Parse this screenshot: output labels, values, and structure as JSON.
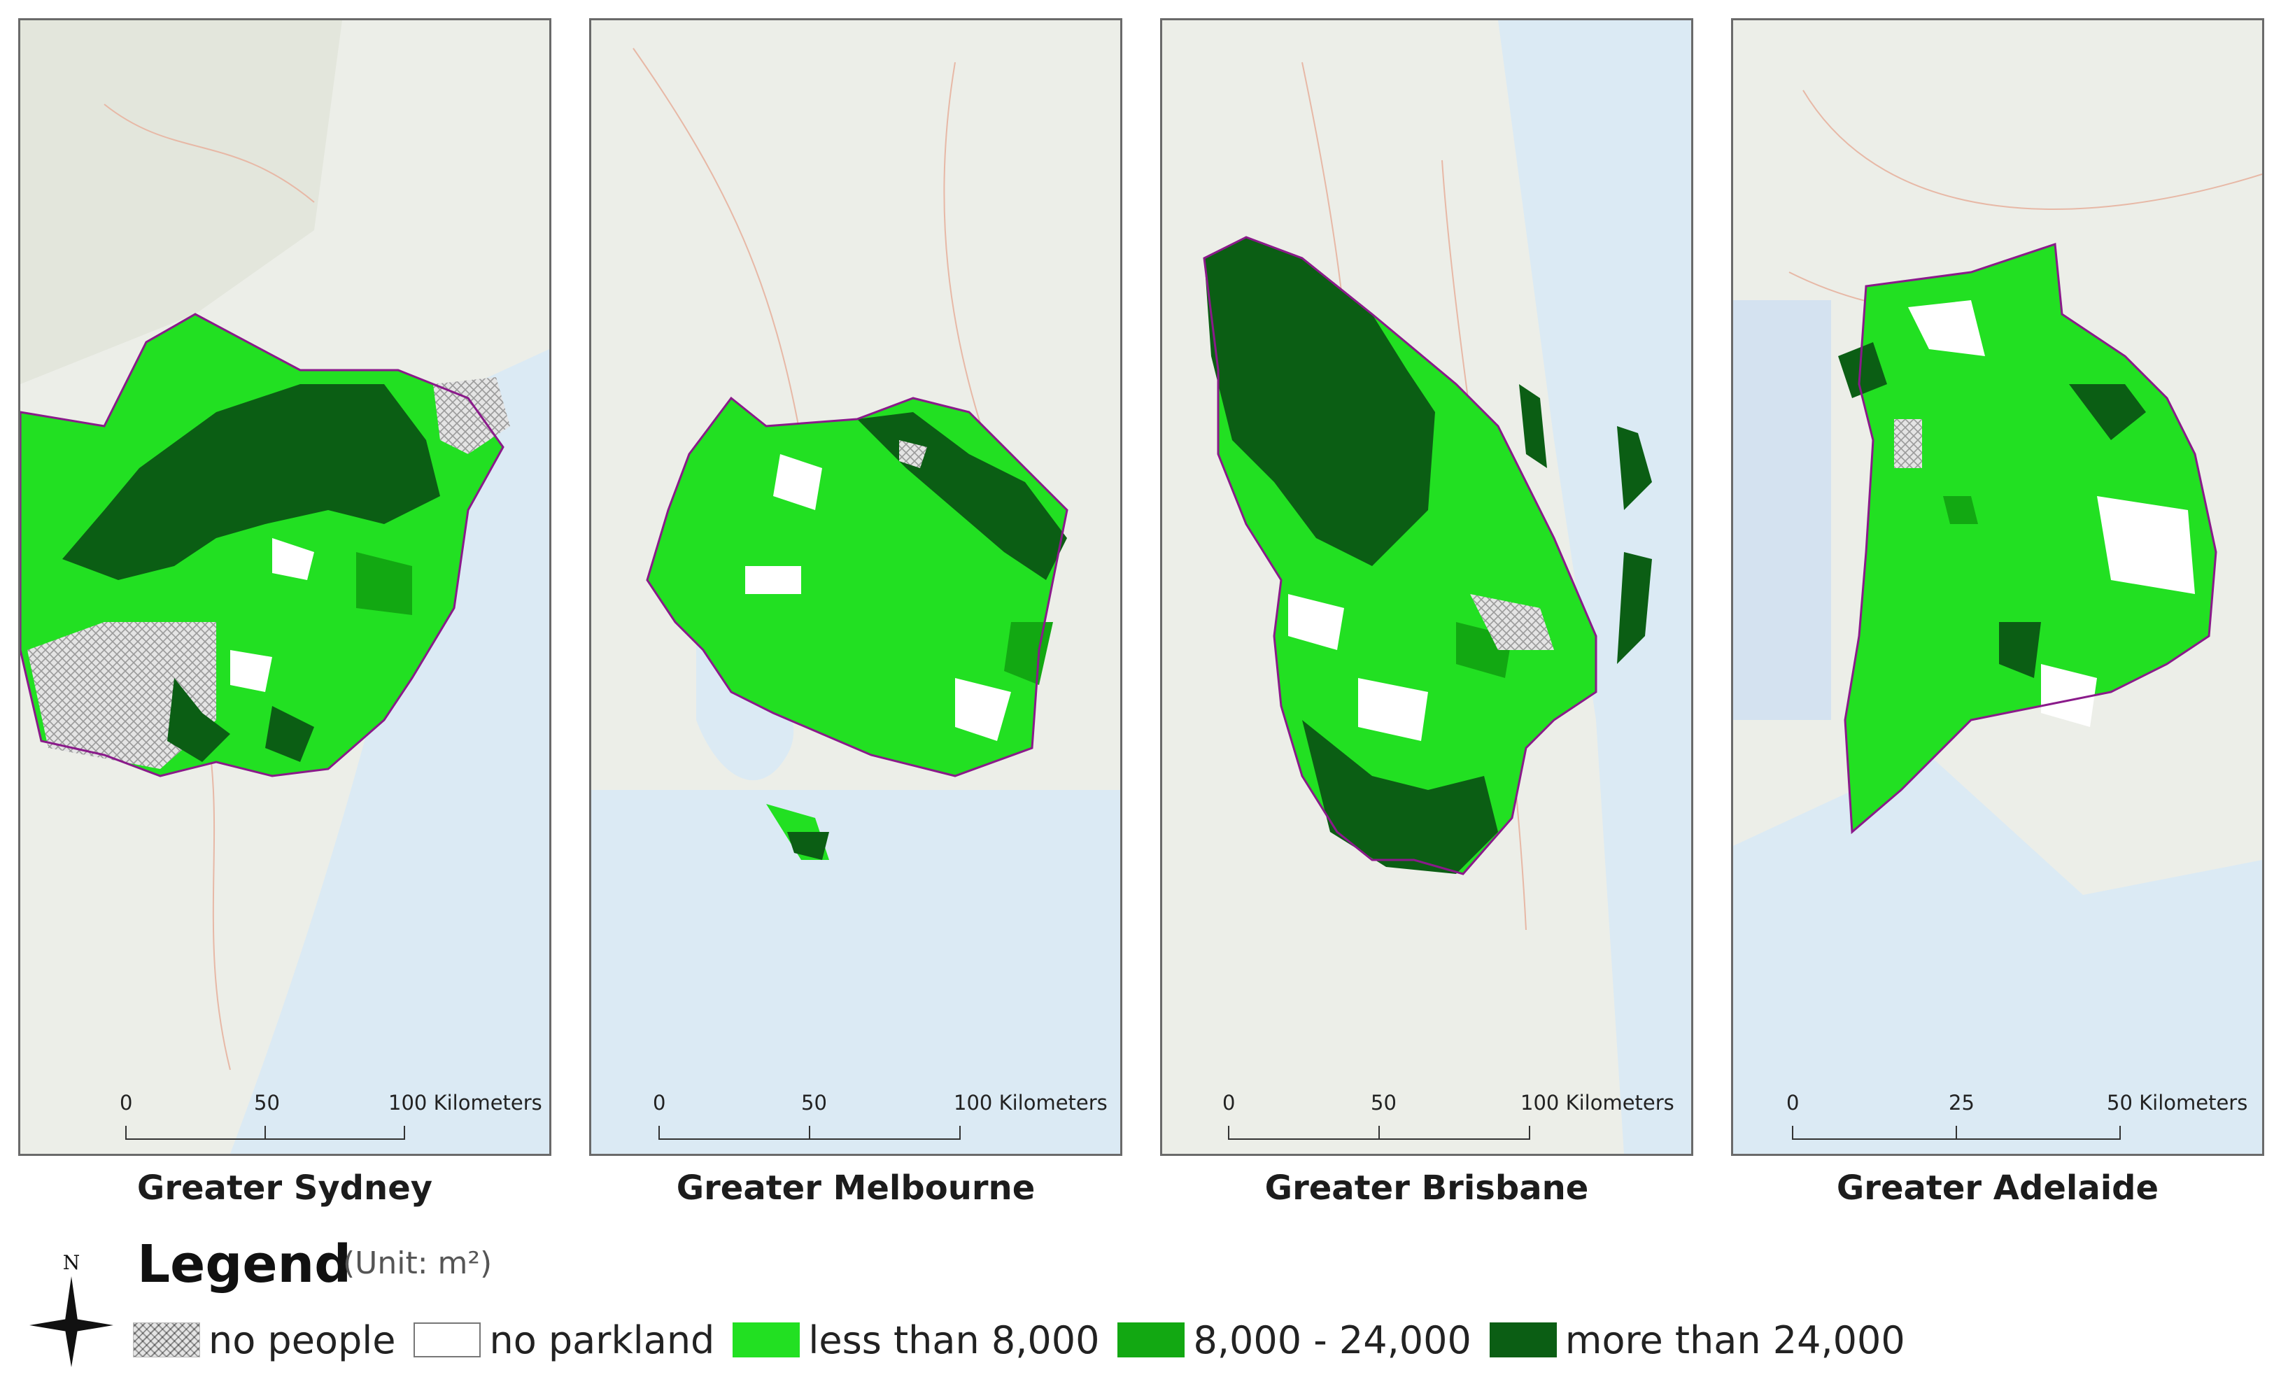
{
  "colors": {
    "no_people_hatch": "#b8b8b8",
    "no_parkland": "#ffffff",
    "less_than_8000": "#22e022",
    "mid_8000_24000": "#12a812",
    "more_than_24000": "#0b5e14",
    "boundary": "#8a1a8a",
    "water": "#dbeaf4",
    "land": "#eef0ec"
  },
  "maps": [
    {
      "id": "sydney",
      "caption": "Greater Sydney",
      "scale_labels": [
        "0",
        "50",
        "100 Kilometers"
      ]
    },
    {
      "id": "melbourne",
      "caption": "Greater Melbourne",
      "scale_labels": [
        "0",
        "50",
        "100 Kilometers"
      ]
    },
    {
      "id": "brisbane",
      "caption": "Greater Brisbane",
      "scale_labels": [
        "0",
        "50",
        "100 Kilometers"
      ]
    },
    {
      "id": "adelaide",
      "caption": "Greater Adelaide",
      "scale_labels": [
        "0",
        "25",
        "50 Kilometers"
      ]
    }
  ],
  "legend": {
    "title": "Legend",
    "unit": "(Unit: m²)",
    "north_label": "N",
    "items": [
      {
        "label": "no people",
        "icon": "hatch-swatch"
      },
      {
        "label": "no parkland",
        "icon": "white-swatch"
      },
      {
        "label": "less than 8,000",
        "icon": "light-green-swatch"
      },
      {
        "label": "8,000 - 24,000",
        "icon": "medium-green-swatch"
      },
      {
        "label": "more than 24,000",
        "icon": "dark-green-swatch"
      }
    ]
  }
}
